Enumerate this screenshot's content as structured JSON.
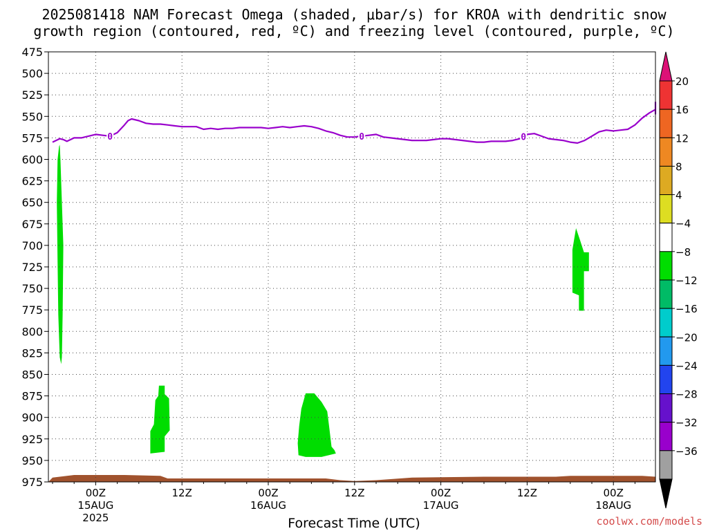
{
  "title_line1": "2025081418 NAM Forecast Omega (shaded, μbar/s) for KROA with dendritic snow",
  "title_line2": "growth region (contoured, red, ºC) and freezing level (contoured, purple, ºC)",
  "credit": "coolwx.com/models",
  "chart_data": {
    "type": "area",
    "title": "2025081418 NAM Forecast Omega (shaded, μbar/s) for KROA with dendritic snow growth region (contoured, red, ºC) and freezing level (contoured, purple, ºC)",
    "xlabel": "Forecast Time (UTC)",
    "ylabel": "",
    "x_unit": "hours since 2025-08-14 18Z",
    "xlim": [
      0,
      84
    ],
    "ylim": [
      975,
      475
    ],
    "y_ticks": [
      475,
      500,
      525,
      550,
      575,
      600,
      625,
      650,
      675,
      700,
      725,
      750,
      775,
      800,
      825,
      850,
      875,
      900,
      925,
      950,
      975
    ],
    "x_ticks": [
      {
        "x": 6,
        "label": "00Z",
        "sub1": "15AUG",
        "sub2": "2025"
      },
      {
        "x": 18,
        "label": "12Z",
        "sub1": "",
        "sub2": ""
      },
      {
        "x": 30,
        "label": "00Z",
        "sub1": "16AUG",
        "sub2": ""
      },
      {
        "x": 42,
        "label": "12Z",
        "sub1": "",
        "sub2": ""
      },
      {
        "x": 54,
        "label": "00Z",
        "sub1": "17AUG",
        "sub2": ""
      },
      {
        "x": 66,
        "label": "12Z",
        "sub1": "",
        "sub2": ""
      },
      {
        "x": 78,
        "label": "00Z",
        "sub1": "18AUG",
        "sub2": ""
      }
    ],
    "grid": true,
    "freezing_level": {
      "label": "0",
      "color": "#9900cc",
      "label_x": [
        8,
        43,
        65.5
      ],
      "points": [
        [
          0,
          580
        ],
        [
          0.5,
          578
        ],
        [
          1,
          576
        ],
        [
          1.5,
          577
        ],
        [
          2,
          579
        ],
        [
          3,
          575
        ],
        [
          4,
          575
        ],
        [
          5,
          573
        ],
        [
          6,
          571
        ],
        [
          7,
          572
        ],
        [
          8,
          573
        ],
        [
          9,
          569
        ],
        [
          10,
          560
        ],
        [
          10.5,
          555
        ],
        [
          11,
          553
        ],
        [
          12,
          555
        ],
        [
          13,
          558
        ],
        [
          14,
          559
        ],
        [
          15,
          559
        ],
        [
          16,
          560
        ],
        [
          17,
          561
        ],
        [
          18,
          562
        ],
        [
          19,
          562
        ],
        [
          20,
          562
        ],
        [
          21,
          565
        ],
        [
          22,
          564
        ],
        [
          23,
          565
        ],
        [
          24,
          564
        ],
        [
          25,
          564
        ],
        [
          26,
          563
        ],
        [
          27,
          563
        ],
        [
          28,
          563
        ],
        [
          29,
          563
        ],
        [
          30,
          564
        ],
        [
          31,
          563
        ],
        [
          32,
          562
        ],
        [
          33,
          563
        ],
        [
          34,
          562
        ],
        [
          35,
          561
        ],
        [
          36,
          562
        ],
        [
          37,
          564
        ],
        [
          38,
          567
        ],
        [
          39,
          569
        ],
        [
          40,
          572
        ],
        [
          41,
          574
        ],
        [
          42,
          574
        ],
        [
          43,
          573
        ],
        [
          44,
          572
        ],
        [
          45,
          571
        ],
        [
          46,
          574
        ],
        [
          47,
          575
        ],
        [
          48,
          576
        ],
        [
          49,
          577
        ],
        [
          50,
          578
        ],
        [
          51,
          578
        ],
        [
          52,
          578
        ],
        [
          53,
          577
        ],
        [
          54,
          576
        ],
        [
          55,
          576
        ],
        [
          56,
          577
        ],
        [
          57,
          578
        ],
        [
          58,
          579
        ],
        [
          59,
          580
        ],
        [
          60,
          580
        ],
        [
          61,
          579
        ],
        [
          62,
          579
        ],
        [
          63,
          579
        ],
        [
          64,
          578
        ],
        [
          65,
          576
        ],
        [
          66,
          571
        ],
        [
          67,
          570
        ],
        [
          68,
          573
        ],
        [
          69,
          576
        ],
        [
          70,
          577
        ],
        [
          71,
          578
        ],
        [
          72,
          580
        ],
        [
          73,
          581
        ],
        [
          74,
          578
        ],
        [
          75,
          573
        ],
        [
          76,
          568
        ],
        [
          77,
          566
        ],
        [
          78,
          567
        ],
        [
          79,
          566
        ],
        [
          80,
          565
        ],
        [
          81,
          560
        ],
        [
          82,
          552
        ],
        [
          83,
          546
        ],
        [
          84,
          542
        ],
        [
          85,
          542
        ],
        [
          86,
          543
        ],
        [
          87,
          545
        ],
        [
          88,
          547
        ],
        [
          89,
          547
        ],
        [
          90,
          544
        ],
        [
          91,
          540
        ],
        [
          92,
          535
        ],
        [
          93,
          533
        ]
      ]
    },
    "omega_regions": [
      {
        "value_range": [
          -8,
          -4
        ],
        "color": "#00dd00",
        "points": [
          [
            1,
            583
          ],
          [
            1.1,
            600
          ],
          [
            1.3,
            650
          ],
          [
            1.5,
            700
          ],
          [
            1.4,
            780
          ],
          [
            1.3,
            830
          ],
          [
            1.2,
            838
          ],
          [
            1,
            830
          ],
          [
            0.8,
            780
          ],
          [
            0.7,
            720
          ],
          [
            0.6,
            650
          ],
          [
            0.7,
            600
          ],
          [
            0.9,
            585
          ]
        ]
      },
      {
        "value_range": [
          -8,
          -4
        ],
        "color": "#00dd00",
        "points": [
          [
            14.8,
            863
          ],
          [
            15.6,
            863
          ],
          [
            15.6,
            873
          ],
          [
            16.2,
            878
          ],
          [
            16.3,
            915
          ],
          [
            15.6,
            922
          ],
          [
            15.6,
            940
          ],
          [
            13.6,
            942
          ],
          [
            13.6,
            916
          ],
          [
            14.1,
            908
          ],
          [
            14.3,
            880
          ],
          [
            14.7,
            875
          ]
        ]
      },
      {
        "value_range": [
          -8,
          -4
        ],
        "color": "#00dd00",
        "points": [
          [
            35.2,
            872
          ],
          [
            36.4,
            872
          ],
          [
            37.4,
            882
          ],
          [
            38.2,
            893
          ],
          [
            38.5,
            913
          ],
          [
            38.8,
            934
          ],
          [
            39.2,
            938
          ],
          [
            39.4,
            942
          ],
          [
            38.4,
            944
          ],
          [
            37.4,
            946
          ],
          [
            35.2,
            946
          ],
          [
            34.2,
            944
          ],
          [
            34.1,
            930
          ],
          [
            34.3,
            910
          ],
          [
            34.6,
            890
          ],
          [
            35.0,
            878
          ]
        ]
      },
      {
        "value_range": [
          -8,
          -4
        ],
        "color": "#00dd00",
        "points": [
          [
            72.8,
            680
          ],
          [
            73.4,
            695
          ],
          [
            73.9,
            708
          ],
          [
            74.6,
            708
          ],
          [
            74.6,
            730
          ],
          [
            73.9,
            730
          ],
          [
            73.9,
            776
          ],
          [
            73.2,
            776
          ],
          [
            73.2,
            758
          ],
          [
            72.3,
            755
          ],
          [
            72.3,
            705
          ]
        ]
      }
    ],
    "surface": {
      "color": "#a0522d",
      "points": [
        [
          0,
          970
        ],
        [
          2,
          968
        ],
        [
          3,
          967
        ],
        [
          10,
          967
        ],
        [
          15,
          968
        ],
        [
          16,
          971
        ],
        [
          38,
          971
        ],
        [
          40,
          973
        ],
        [
          42,
          974
        ],
        [
          45,
          973
        ],
        [
          50,
          970
        ],
        [
          60,
          969
        ],
        [
          70,
          969
        ],
        [
          72,
          968
        ],
        [
          82,
          968
        ],
        [
          84,
          969
        ],
        [
          93,
          969
        ]
      ]
    },
    "colorbar": {
      "labels": [
        "20",
        "16",
        "12",
        "8",
        "4",
        "−4",
        "−8",
        "−12",
        "−16",
        "−20",
        "−24",
        "−28",
        "−32",
        "−36"
      ],
      "colors": [
        "#dd1177",
        "#ee3333",
        "#ee6622",
        "#ee8822",
        "#ddaa22",
        "#dddd22",
        "#ffffff",
        "#00dd00",
        "#00bb66",
        "#00cccc",
        "#2299ee",
        "#2244ee",
        "#6611cc",
        "#9900cc",
        "#a0a0a0",
        "#000000"
      ]
    }
  }
}
